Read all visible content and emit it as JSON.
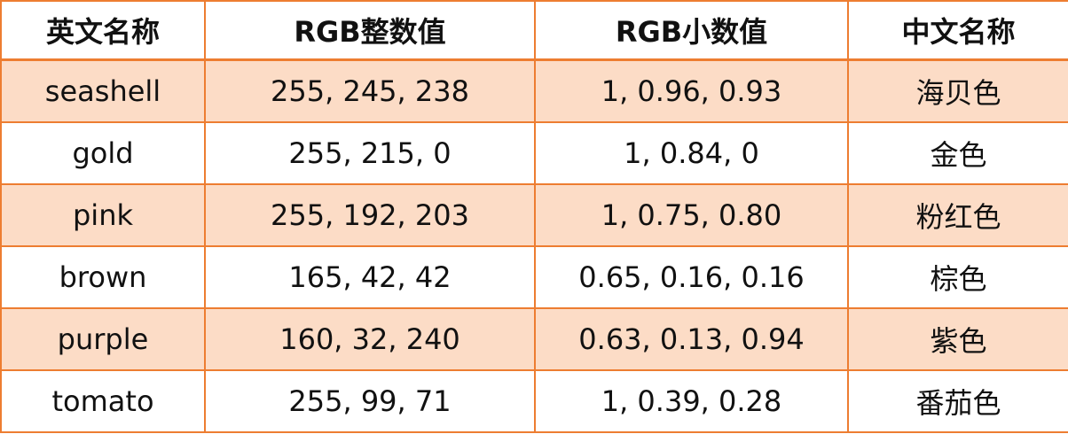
{
  "table": {
    "header": [
      "英文名称",
      "RGB整数值",
      "RGB小数值",
      "中文名称"
    ],
    "rows": [
      [
        "seashell",
        "255, 245, 238",
        "1, 0.96, 0.93",
        "海贝色"
      ],
      [
        "gold",
        "255, 215, 0",
        "1, 0.84, 0",
        "金色"
      ],
      [
        "pink",
        "255, 192, 203",
        "1, 0.75, 0.80",
        "粉红色"
      ],
      [
        "brown",
        "165, 42, 42",
        "0.65, 0.16, 0.16",
        "棕色"
      ],
      [
        "purple",
        "160, 32, 240",
        "0.63, 0.13, 0.94",
        "紫色"
      ],
      [
        "tomato",
        "255, 99, 71",
        "1, 0.39, 0.28",
        "番茄色"
      ]
    ]
  }
}
